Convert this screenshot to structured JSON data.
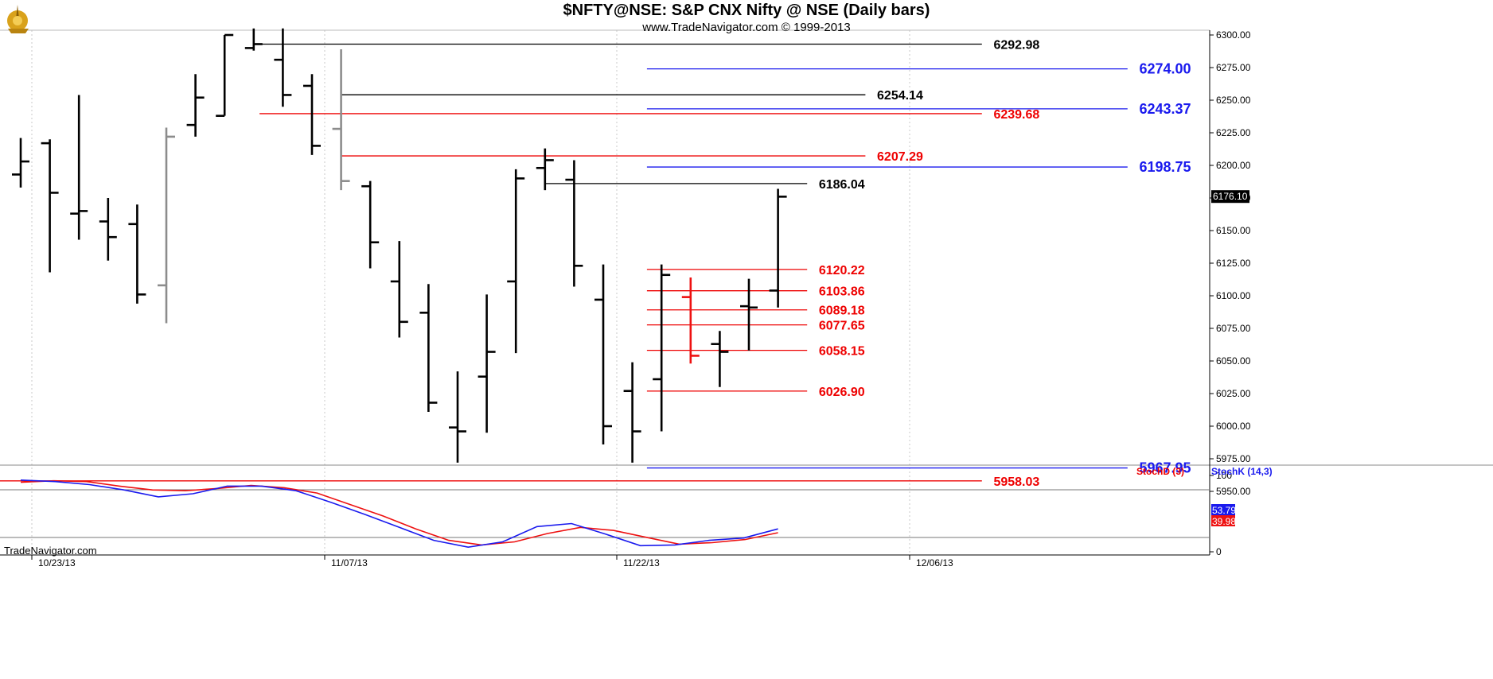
{
  "header": {
    "title": "$NFTY@NSE:  S&P CNX Nifty @ NSE  (Daily bars)",
    "copyright": "www.TradeNavigator.com © 1999-2013",
    "watermark": "TradeNavigator.com"
  },
  "chart_data": {
    "type": "ohlc",
    "price_axis": {
      "ylim": [
        5940,
        6305
      ],
      "ticks": [
        "6300.00",
        "6275.00",
        "6250.00",
        "6225.00",
        "6200.00",
        "6175.00",
        "6150.00",
        "6125.00",
        "6100.00",
        "6075.00",
        "6050.00",
        "6025.00",
        "6000.00",
        "5975.00",
        "5950.00"
      ],
      "last_price": "6176.10"
    },
    "date_axis": {
      "labels": [
        "10/23/13",
        "11/07/13",
        "11/22/13",
        "12/06/13"
      ]
    },
    "bars": [
      {
        "o": 6193,
        "h": 6221,
        "l": 6183,
        "c": 6203,
        "color": "black"
      },
      {
        "o": 6217,
        "h": 6220,
        "l": 6118,
        "c": 6179,
        "color": "black"
      },
      {
        "o": 6163,
        "h": 6254,
        "l": 6143,
        "c": 6165,
        "color": "black"
      },
      {
        "o": 6157,
        "h": 6175,
        "l": 6127,
        "c": 6145,
        "color": "black"
      },
      {
        "o": 6155,
        "h": 6170,
        "l": 6094,
        "c": 6101,
        "color": "black"
      },
      {
        "o": 6108,
        "h": 6229,
        "l": 6079,
        "c": 6222,
        "color": "gray"
      },
      {
        "o": 6231,
        "h": 6270,
        "l": 6222,
        "c": 6252,
        "color": "black"
      },
      {
        "o": 6238,
        "h": 6300,
        "l": 6238,
        "c": 6300,
        "color": "black"
      },
      {
        "o": 6290,
        "h": 6305,
        "l": 6288,
        "c": 6293,
        "color": "black"
      },
      {
        "o": 6281,
        "h": 6305,
        "l": 6245,
        "c": 6254,
        "color": "black"
      },
      {
        "o": 6261,
        "h": 6270,
        "l": 6208,
        "c": 6215,
        "color": "black"
      },
      {
        "o": 6228,
        "h": 6289,
        "l": 6181,
        "c": 6188,
        "color": "gray"
      },
      {
        "o": 6184,
        "h": 6188,
        "l": 6121,
        "c": 6141,
        "color": "black"
      },
      {
        "o": 6111,
        "h": 6142,
        "l": 6068,
        "c": 6080,
        "color": "black"
      },
      {
        "o": 6087,
        "h": 6109,
        "l": 6011,
        "c": 6018,
        "color": "black"
      },
      {
        "o": 5999,
        "h": 6042,
        "l": 5972,
        "c": 5996,
        "color": "black"
      },
      {
        "o": 6038,
        "h": 6101,
        "l": 5995,
        "c": 6057,
        "color": "black"
      },
      {
        "o": 6111,
        "h": 6197,
        "l": 6056,
        "c": 6190,
        "color": "black"
      },
      {
        "o": 6198,
        "h": 6213,
        "l": 6181,
        "c": 6204,
        "color": "black"
      },
      {
        "o": 6189,
        "h": 6204,
        "l": 6107,
        "c": 6123,
        "color": "black"
      },
      {
        "o": 6097,
        "h": 6124,
        "l": 5986,
        "c": 6000,
        "color": "black"
      },
      {
        "o": 6027,
        "h": 6049,
        "l": 5972,
        "c": 5996,
        "color": "black"
      },
      {
        "o": 6036,
        "h": 6124,
        "l": 5996,
        "c": 6116,
        "color": "black"
      },
      {
        "o": 6099,
        "h": 6114,
        "l": 6048,
        "c": 6054,
        "color": "red"
      },
      {
        "o": 6063,
        "h": 6073,
        "l": 6030,
        "c": 6057,
        "color": "black"
      },
      {
        "o": 6092,
        "h": 6113,
        "l": 6058,
        "c": 6091,
        "color": "black"
      },
      {
        "o": 6104,
        "h": 6182,
        "l": 6091,
        "c": 6176,
        "color": "black"
      }
    ],
    "levels": [
      {
        "value": 6292.98,
        "label": "6292.98",
        "color": "#000000",
        "from_bar": 8,
        "to_bar": 33,
        "text_bar": 33.4,
        "size": 16
      },
      {
        "value": 6254.14,
        "label": "6254.14",
        "color": "#000000",
        "from_bar": 11,
        "to_bar": 29,
        "text_bar": 29.4,
        "size": 16
      },
      {
        "value": 6239.68,
        "label": "6239.68",
        "color": "#ee0000",
        "from_bar": 8.2,
        "to_bar": 33,
        "text_bar": 33.4,
        "size": 16
      },
      {
        "value": 6207.29,
        "label": "6207.29",
        "color": "#ee0000",
        "from_bar": 11,
        "to_bar": 29,
        "text_bar": 29.4,
        "size": 16
      },
      {
        "value": 6186.04,
        "label": "6186.04",
        "color": "#000000",
        "from_bar": 18,
        "to_bar": 27,
        "text_bar": 27.4,
        "size": 16
      },
      {
        "value": 6120.22,
        "label": "6120.22",
        "color": "#ee0000",
        "from_bar": 21.5,
        "to_bar": 27,
        "text_bar": 27.4,
        "size": 16
      },
      {
        "value": 6103.86,
        "label": "6103.86",
        "color": "#ee0000",
        "from_bar": 21.5,
        "to_bar": 27,
        "text_bar": 27.4,
        "size": 16
      },
      {
        "value": 6089.18,
        "label": "6089.18",
        "color": "#ee0000",
        "from_bar": 21.5,
        "to_bar": 27,
        "text_bar": 27.4,
        "size": 16
      },
      {
        "value": 6077.65,
        "label": "6077.65",
        "color": "#ee0000",
        "from_bar": 21.5,
        "to_bar": 27,
        "text_bar": 27.4,
        "size": 16
      },
      {
        "value": 6058.15,
        "label": "6058.15",
        "color": "#ee0000",
        "from_bar": 21.5,
        "to_bar": 27,
        "text_bar": 27.4,
        "size": 16
      },
      {
        "value": 6026.9,
        "label": "6026.90",
        "color": "#ee0000",
        "from_bar": 21.5,
        "to_bar": 27,
        "text_bar": 27.4,
        "size": 16
      },
      {
        "value": 6274.0,
        "label": "6274.00",
        "color": "#1a1aee",
        "from_bar": 21.5,
        "to_bar": 38,
        "text_bar": 38.4,
        "size": 18
      },
      {
        "value": 6243.37,
        "label": "6243.37",
        "color": "#1a1aee",
        "from_bar": 21.5,
        "to_bar": 38,
        "text_bar": 38.4,
        "size": 18
      },
      {
        "value": 6198.75,
        "label": "6198.75",
        "color": "#1a1aee",
        "from_bar": 21.5,
        "to_bar": 38,
        "text_bar": 38.4,
        "size": 18
      },
      {
        "value": 5967.95,
        "label": "5967.95",
        "color": "#1a1aee",
        "from_bar": 21.5,
        "to_bar": 38,
        "text_bar": 38.4,
        "size": 18
      },
      {
        "value": 5958.03,
        "label": "5958.03",
        "color": "#ee0000",
        "from_bar": -1,
        "to_bar": 33,
        "text_bar": 33.4,
        "size": 16
      }
    ],
    "stochastic": {
      "ylim": [
        0,
        100
      ],
      "ticks": [
        "100",
        "0"
      ],
      "legend": [
        {
          "name": "StochD (3)",
          "color": "#ee0000"
        },
        {
          "name": "StochK (14,3)",
          "color": "#1a1aee"
        }
      ],
      "k": [
        94,
        92,
        88,
        81,
        72,
        76,
        86,
        86,
        80,
        65,
        49,
        32,
        15,
        6,
        13,
        33,
        37,
        23,
        8,
        9,
        15,
        18,
        30
      ],
      "k_start_bar": 0,
      "d": [
        91,
        93,
        92,
        86,
        81,
        80,
        83,
        87,
        84,
        77,
        62,
        47,
        30,
        15,
        9,
        13,
        24,
        32,
        28,
        19,
        10,
        12,
        16,
        25
      ],
      "d_start_bar": 0,
      "k_last": "53.79",
      "d_last": "39.98"
    }
  }
}
